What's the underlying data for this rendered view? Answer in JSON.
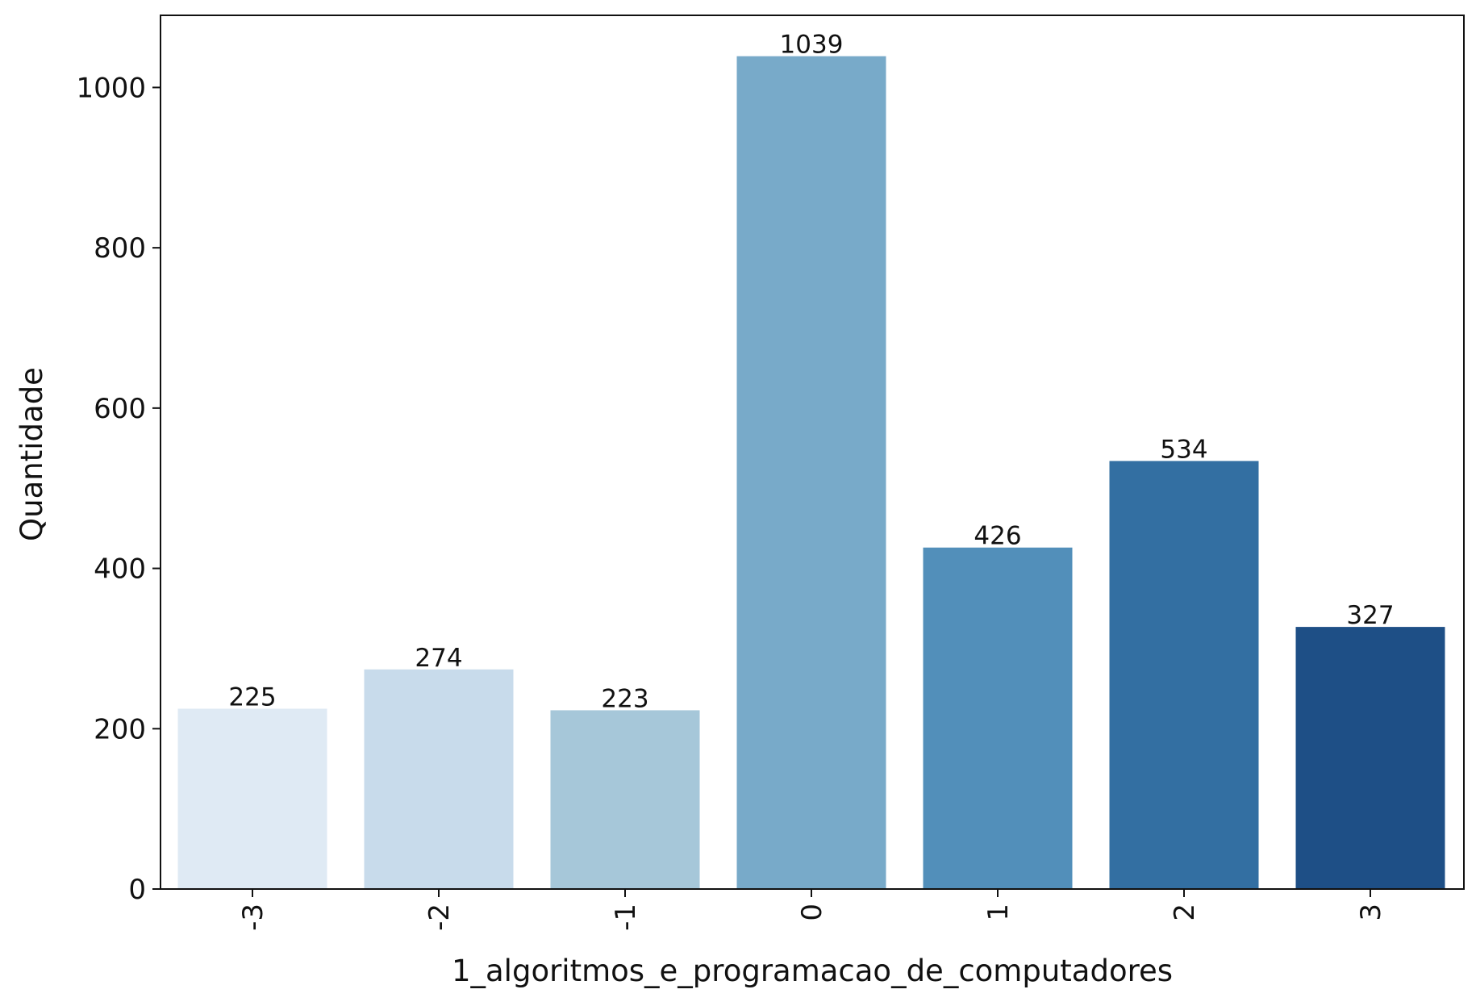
{
  "chart_data": {
    "type": "bar",
    "categories": [
      "-3",
      "-2",
      "-1",
      "0",
      "1",
      "2",
      "3"
    ],
    "values": [
      225,
      274,
      223,
      1039,
      426,
      534,
      327
    ],
    "data_labels": [
      "225",
      "274",
      "223",
      "1039",
      "426",
      "534",
      "327"
    ],
    "colors": [
      "#dfeaf4",
      "#c8dbeb",
      "#a6c7d9",
      "#78aac9",
      "#528fba",
      "#336fa2",
      "#1e4f86"
    ],
    "title": "",
    "xlabel": "1_algoritmos_e_programacao_de_computadores",
    "ylabel": "Quantidade",
    "ylim": [
      0,
      1090
    ],
    "yticks": [
      0,
      200,
      400,
      600,
      800,
      1000
    ],
    "ytick_labels": [
      "0",
      "200",
      "400",
      "600",
      "800",
      "1000"
    ],
    "grid": false,
    "legend": "none"
  }
}
